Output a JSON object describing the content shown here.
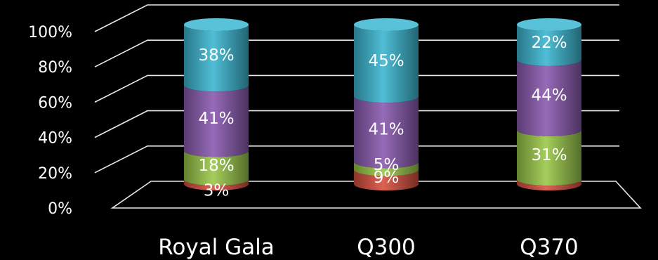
{
  "chart_data": {
    "type": "bar",
    "stacked": true,
    "orientation": "vertical",
    "style": "3d-cylinder",
    "categories": [
      "Royal Gala",
      "Q300",
      "Q370"
    ],
    "series": [
      {
        "color": "#d9503f",
        "values": [
          3,
          9,
          3
        ],
        "labels": [
          "3%",
          "9%",
          ""
        ]
      },
      {
        "color": "#9bc84a",
        "values": [
          18,
          5,
          31
        ],
        "labels": [
          "18%",
          "5%",
          "31%"
        ]
      },
      {
        "color": "#8a5bb0",
        "values": [
          41,
          41,
          44
        ],
        "labels": [
          "41%",
          "41%",
          "44%"
        ]
      },
      {
        "color": "#3cb7d1",
        "values": [
          38,
          45,
          22
        ],
        "labels": [
          "38%",
          "45%",
          "22%"
        ]
      }
    ],
    "y_ticks": [
      "0%",
      "20%",
      "40%",
      "60%",
      "80%",
      "100%"
    ],
    "ylim": [
      0,
      100
    ],
    "grid": true,
    "legend": "none",
    "background": "#000000"
  }
}
